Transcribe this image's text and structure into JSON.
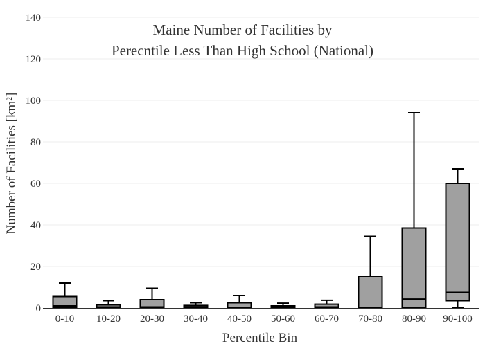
{
  "chart_data": {
    "type": "box",
    "title_lines": [
      "Maine Number of Facilities by",
      "Perecntile Less Than High School (National)"
    ],
    "xlabel": "Percentile Bin",
    "ylabel": "Number of Facilities  [km²]",
    "ylim": [
      0,
      140
    ],
    "yticks": [
      0,
      20,
      40,
      60,
      80,
      100,
      120,
      140
    ],
    "grid": true,
    "box_color": "#a0a0a0",
    "line_color": "#000000",
    "categories": [
      "0-10",
      "10-20",
      "20-30",
      "30-40",
      "40-50",
      "50-60",
      "60-70",
      "70-80",
      "80-90",
      "90-100"
    ],
    "boxes": [
      {
        "min": 0,
        "q1": 0,
        "median": 1,
        "q3": 5.5,
        "max": 12
      },
      {
        "min": 0,
        "q1": 0,
        "median": 0.5,
        "q3": 1.5,
        "max": 3.5
      },
      {
        "min": 0,
        "q1": 0,
        "median": 0.5,
        "q3": 4,
        "max": 9.5
      },
      {
        "min": 0,
        "q1": 0,
        "median": 0.5,
        "q3": 1.2,
        "max": 2.5
      },
      {
        "min": 0,
        "q1": 0,
        "median": 0.3,
        "q3": 2.5,
        "max": 6
      },
      {
        "min": 0,
        "q1": 0,
        "median": 0.4,
        "q3": 1,
        "max": 2.3
      },
      {
        "min": 0,
        "q1": 0,
        "median": 0.5,
        "q3": 1.8,
        "max": 3.7
      },
      {
        "min": 0,
        "q1": 0,
        "median": 0.3,
        "q3": 15,
        "max": 34.5
      },
      {
        "min": 0,
        "q1": 0,
        "median": 4.3,
        "q3": 38.5,
        "max": 94
      },
      {
        "min": 0,
        "q1": 3.5,
        "median": 7.5,
        "q3": 60,
        "max": 67
      }
    ]
  }
}
